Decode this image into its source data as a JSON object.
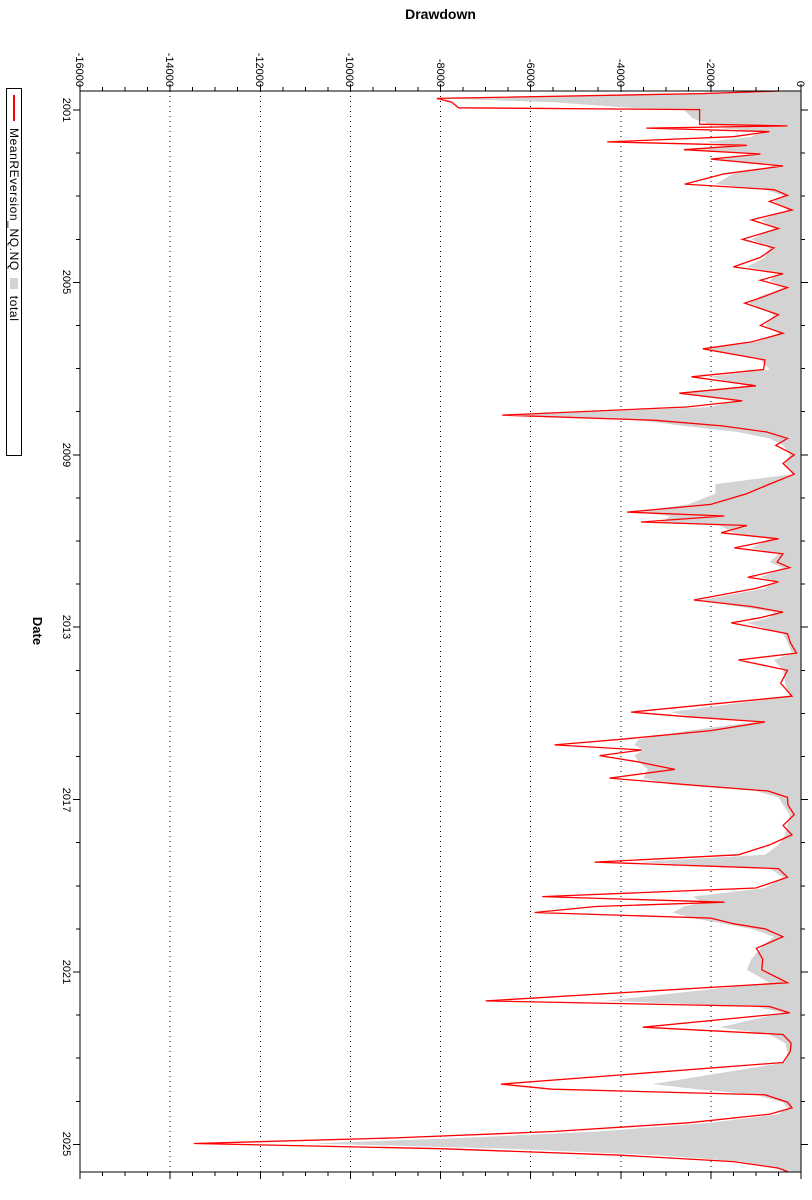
{
  "title": "Drawdown",
  "x_axis_label": "Date",
  "legend": {
    "series1_label": "MeanREversion_NQ.NQ",
    "series1_color": "#ff0000",
    "series2_label": "total",
    "series2_color": "#d3d3d3"
  },
  "axes": {
    "value_ticks": [
      {
        "label": "0",
        "value": 0
      },
      {
        "label": "-2000",
        "value": -2000
      },
      {
        "label": "-4000",
        "value": -4000
      },
      {
        "label": "-6000",
        "value": -6000
      },
      {
        "label": "-8000",
        "value": -8000
      },
      {
        "label": "-10000",
        "value": -10000
      },
      {
        "label": "-12000",
        "value": -12000
      },
      {
        "label": "-14000",
        "value": -14000
      },
      {
        "label": "-16000",
        "value": -16000
      }
    ],
    "value_minor_step": 500,
    "year_ticks": [
      {
        "label": "2001",
        "value": 2001
      },
      {
        "label": "2005",
        "value": 2005
      },
      {
        "label": "2009",
        "value": 2009
      },
      {
        "label": "2013",
        "value": 2013
      },
      {
        "label": "2017",
        "value": 2017
      },
      {
        "label": "2021",
        "value": 2021
      },
      {
        "label": "2025",
        "value": 2025
      }
    ],
    "year_minor_step": 1,
    "grid_color": "#000000",
    "border_color": "#000000"
  },
  "chart_data": {
    "type": "area",
    "orientation": "rotated-90-clockwise",
    "title": "Drawdown",
    "xlabel": "Date",
    "ylabel": "Drawdown",
    "ylim": [
      -16000,
      0
    ],
    "xlim": [
      2000.54,
      2025.65
    ],
    "grid": "dotted-major",
    "legend_position": "top-left-rotated",
    "x": [
      2000.54,
      2000.62,
      2000.73,
      2000.82,
      2000.95,
      2000.99,
      2001.2,
      2001.33,
      2001.37,
      2001.42,
      2001.5,
      2001.62,
      2001.74,
      2001.82,
      2001.92,
      2002.02,
      2002.14,
      2002.3,
      2002.48,
      2002.72,
      2002.85,
      2002.98,
      2003.12,
      2003.32,
      2003.55,
      2003.75,
      2004.0,
      2004.2,
      2004.42,
      2004.64,
      2004.8,
      2004.95,
      2005.12,
      2005.32,
      2005.48,
      2005.75,
      2006.0,
      2006.18,
      2006.38,
      2006.54,
      2006.8,
      2007.02,
      2007.19,
      2007.4,
      2007.57,
      2007.75,
      2007.89,
      2008.08,
      2008.2,
      2008.33,
      2008.47,
      2008.62,
      2008.78,
      2009.0,
      2009.2,
      2009.45,
      2009.68,
      2009.9,
      2010.15,
      2010.33,
      2010.42,
      2010.56,
      2010.64,
      2010.81,
      2010.95,
      2011.16,
      2011.3,
      2011.49,
      2011.62,
      2011.84,
      2011.95,
      2012.1,
      2012.37,
      2012.52,
      2012.65,
      2012.78,
      2012.9,
      2013.15,
      2013.35,
      2013.6,
      2013.76,
      2014.0,
      2014.3,
      2014.6,
      2014.97,
      2015.08,
      2015.2,
      2015.4,
      2015.6,
      2015.73,
      2015.85,
      2015.98,
      2016.12,
      2016.3,
      2016.5,
      2016.65,
      2016.8,
      2016.95,
      2017.12,
      2017.35,
      2017.6,
      2017.82,
      2018.05,
      2018.28,
      2018.45,
      2018.6,
      2018.8,
      2019.05,
      2019.25,
      2019.38,
      2019.48,
      2019.62,
      2019.75,
      2019.88,
      2020.0,
      2020.18,
      2020.45,
      2020.7,
      2020.95,
      2021.25,
      2021.67,
      2021.8,
      2021.95,
      2022.28,
      2022.45,
      2022.65,
      2022.85,
      2023.1,
      2023.6,
      2023.72,
      2023.85,
      2024.02,
      2024.15,
      2024.3,
      2024.5,
      2024.7,
      2024.85,
      2024.98,
      2025.1,
      2025.25,
      2025.4,
      2025.55,
      2025.63
    ],
    "series": [
      {
        "name": "MeanREversion_NQ.NQ",
        "style": "line",
        "color": "#ff0000",
        "values": [
          -500,
          -2200,
          -8080,
          -7750,
          -7600,
          -2250,
          -2250,
          -2250,
          -300,
          -3430,
          -700,
          -1500,
          -4300,
          -1200,
          -2600,
          -900,
          -2000,
          -400,
          -1700,
          -2580,
          -600,
          -300,
          -700,
          -200,
          -1100,
          -500,
          -1300,
          -600,
          -900,
          -1500,
          -400,
          -900,
          -300,
          -800,
          -1250,
          -500,
          -900,
          -400,
          -1100,
          -2180,
          -800,
          -830,
          -2430,
          -1000,
          -2700,
          -1300,
          -2540,
          -6630,
          -3230,
          -1750,
          -760,
          -300,
          -560,
          -150,
          -400,
          -150,
          -700,
          -1200,
          -2000,
          -3860,
          -1700,
          -3550,
          -1200,
          -1770,
          -500,
          -1480,
          -400,
          -530,
          -250,
          -1180,
          -500,
          -1000,
          -2380,
          -1100,
          -400,
          -900,
          -1550,
          -300,
          -240,
          -100,
          -1390,
          -300,
          -450,
          -200,
          -3770,
          -2500,
          -800,
          -2000,
          -4000,
          -5470,
          -3530,
          -4470,
          -3640,
          -2800,
          -4250,
          -2580,
          -730,
          -300,
          -290,
          -150,
          -400,
          -200,
          -700,
          -1390,
          -4580,
          -500,
          -300,
          -1000,
          -5740,
          -1700,
          -4560,
          -5910,
          -2000,
          -1500,
          -800,
          -400,
          -990,
          -850,
          -870,
          -300,
          -7000,
          -700,
          -250,
          -3510,
          -400,
          -220,
          -240,
          -400,
          -6660,
          -5530,
          -800,
          -300,
          -200,
          -700,
          -2500,
          -5500,
          -9000,
          -13470,
          -8000,
          -4000,
          -1500,
          -500,
          -300
        ]
      },
      {
        "name": "total",
        "style": "area",
        "color": "#d3d3d3",
        "values": [
          -400,
          -2100,
          -8050,
          -5500,
          -3800,
          -2600,
          -2400,
          -2000,
          -1200,
          -1800,
          -900,
          -1100,
          -2100,
          -1500,
          -2300,
          -1000,
          -1800,
          -600,
          -1500,
          -1900,
          -800,
          -400,
          -600,
          -300,
          -900,
          -600,
          -1100,
          -700,
          -800,
          -1200,
          -500,
          -700,
          -400,
          -900,
          -1150,
          -600,
          -800,
          -500,
          -1000,
          -2100,
          -900,
          -700,
          -2030,
          -1200,
          -2700,
          -1500,
          -2000,
          -6370,
          -3600,
          -2600,
          -1400,
          -700,
          -400,
          -250,
          -350,
          -200,
          -1900,
          -1900,
          -2500,
          -3660,
          -2900,
          -3100,
          -1800,
          -1500,
          -700,
          -1100,
          -500,
          -700,
          -400,
          -900,
          -600,
          -800,
          -2200,
          -1400,
          -600,
          -700,
          -1200,
          -400,
          -300,
          -200,
          -600,
          -400,
          -350,
          -250,
          -2900,
          -2400,
          -1000,
          -2500,
          -3600,
          -3700,
          -3500,
          -3700,
          -3600,
          -3400,
          -3500,
          -2900,
          -1000,
          -500,
          -400,
          -250,
          -300,
          -350,
          -500,
          -800,
          -3650,
          -700,
          -400,
          -800,
          -2400,
          -2200,
          -2600,
          -2850,
          -2400,
          -1700,
          -1100,
          -600,
          -900,
          -1100,
          -1200,
          -700,
          -4350,
          -1000,
          -400,
          -1800,
          -700,
          -350,
          -300,
          -350,
          -3300,
          -2300,
          -1000,
          -400,
          -300,
          -500,
          -2000,
          -4500,
          -7500,
          -10880,
          -6500,
          -3200,
          -1300,
          -600,
          -300
        ]
      }
    ]
  }
}
